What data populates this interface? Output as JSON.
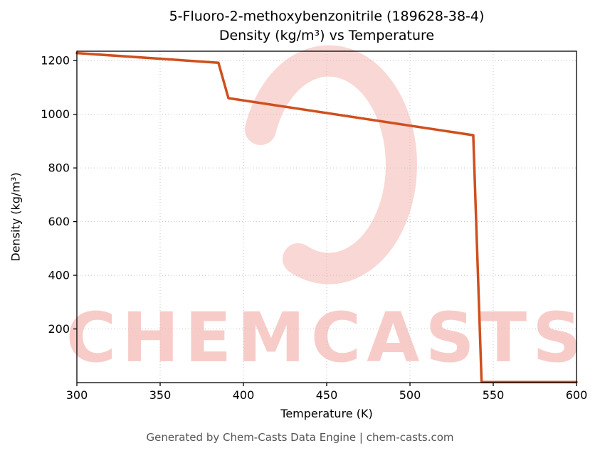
{
  "watermark": {
    "text": "CHEMCASTS",
    "color": "#e2493b"
  },
  "footer": {
    "text": "Generated by Chem-Casts Data Engine | chem-casts.com"
  },
  "chart_data": {
    "type": "line",
    "title_line1": "5-Fluoro-2-methoxybenzonitrile (189628-38-4)",
    "title_line2": "Density (kg/m³) vs Temperature",
    "xlabel": "Temperature (K)",
    "ylabel": "Density (kg/m³)",
    "xlim": [
      300,
      600
    ],
    "ylim": [
      0,
      1235
    ],
    "xticks": [
      300,
      350,
      400,
      450,
      500,
      550,
      600
    ],
    "yticks": [
      200,
      400,
      600,
      800,
      1000,
      1200
    ],
    "grid": true,
    "legend": "none",
    "line_color": "#cf4f1d",
    "series": [
      {
        "name": "Density",
        "points": [
          [
            300,
            1228
          ],
          [
            385,
            1192
          ],
          [
            391,
            1060
          ],
          [
            538,
            922
          ],
          [
            543,
            2
          ],
          [
            600,
            2
          ]
        ]
      }
    ]
  }
}
